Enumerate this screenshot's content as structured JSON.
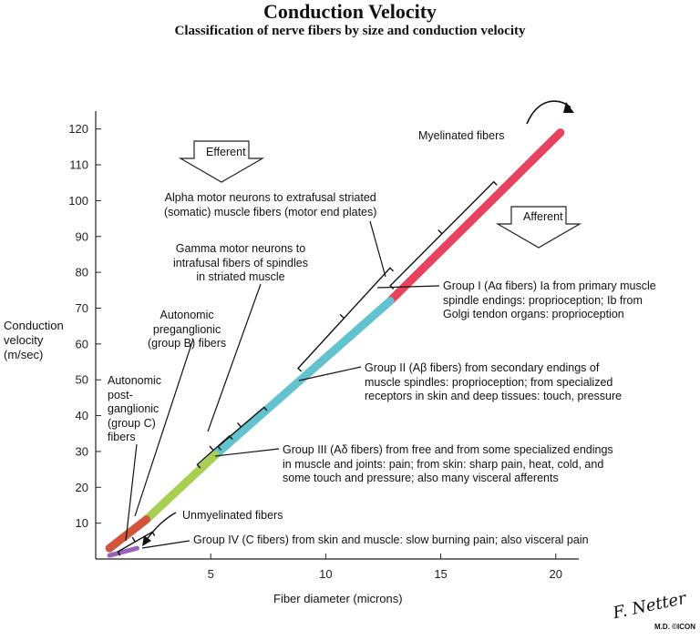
{
  "title": "Conduction Velocity",
  "subtitle": "Classification of nerve fibers by size and conduction velocity",
  "ylabel": "Conduction\nvelocity\n(m/sec)",
  "xlabel": "Fiber diameter (microns)",
  "labels": {
    "efferent": "Efferent",
    "afferent": "Afferent",
    "myelinated": "Myelinated fibers",
    "alpha": "Alpha motor neurons to extrafusal striated\n(somatic) muscle fibers (motor end plates)",
    "gamma": "Gamma motor neurons to\nintrafusal fibers of spindles\nin striated muscle",
    "auto_pre": "Autonomic\npreganglionic\n(group B) fibers",
    "auto_post": "Autonomic\npost-\nganglionic\n(group C)\nfibers",
    "unmyelinated": "Unmyelinated fibers",
    "group1": "Group I (Aα fibers) Ia from primary muscle\nspindle endings: proprioception; Ib from\nGolgi tendon organs: proprioception",
    "group2": "Group II (Aβ fibers) from secondary endings of\nmuscle spindles: proprioception; from specialized\nreceptors in skin and deep tissues: touch, pressure",
    "group3": "Group III (Aδ fibers) from free and from some specialized endings\nin muscle and joints: pain; from skin: sharp pain, heat, cold, and\nsome touch and pressure; also many visceral afferents",
    "group4": "Group IV (C fibers) from skin and muscle: slow burning pain; also visceral pain"
  },
  "signature": "F. Netter",
  "signature_sub": "M.D. ©ICON",
  "colors": {
    "group1": "#e8435e",
    "group2": "#62c3cf",
    "group3": "#a8cf52",
    "preganglionic": "#d1553a",
    "unmyelinated": "#9b5fc0"
  },
  "chart_data": {
    "type": "line",
    "title": "Conduction Velocity",
    "subtitle": "Classification of nerve fibers by size and conduction velocity",
    "xlabel": "Fiber diameter (microns)",
    "ylabel": "Conduction velocity (m/sec)",
    "xlim": [
      0,
      21
    ],
    "ylim": [
      0,
      125
    ],
    "xticks": [
      5,
      10,
      15,
      20
    ],
    "yticks": [
      10,
      20,
      30,
      40,
      50,
      60,
      70,
      80,
      90,
      100,
      110,
      120
    ],
    "grid": false,
    "series": [
      {
        "name": "Group I (Aα fibers)",
        "color": "#e8435e",
        "x": [
          12.8,
          20.2
        ],
        "y": [
          72,
          119
        ]
      },
      {
        "name": "Group II (Aβ fibers)",
        "color": "#62c3cf",
        "x": [
          5.2,
          12.8
        ],
        "y": [
          29,
          72
        ]
      },
      {
        "name": "Group III (Aδ fibers)",
        "color": "#a8cf52",
        "x": [
          2.2,
          5.2
        ],
        "y": [
          11,
          29
        ]
      },
      {
        "name": "Autonomic preganglionic (group B) fibers",
        "color": "#d1553a",
        "x": [
          0.6,
          2.2
        ],
        "y": [
          3,
          11
        ]
      },
      {
        "name": "Unmyelinated fibers",
        "color": "#9b5fc0",
        "x": [
          0.6,
          1.8
        ],
        "y": [
          1,
          3
        ]
      }
    ],
    "brackets": [
      {
        "name": "Alpha motor neurons",
        "x": [
          13.0,
          17.5
        ],
        "y": [
          75,
          104
        ]
      },
      {
        "name": "Gamma motor neurons",
        "x": [
          9.0,
          13.0
        ],
        "y": [
          52,
          80
        ]
      },
      {
        "name": "Autonomic preganglionic",
        "x": [
          5.5,
          7.5
        ],
        "y": [
          30,
          41
        ]
      },
      {
        "name": "Group III",
        "x": [
          4.6,
          6.0
        ],
        "y": [
          25,
          33
        ]
      },
      {
        "name": "Group IV",
        "x": [
          1.1,
          2.6
        ],
        "y": [
          0.5,
          6
        ]
      }
    ]
  }
}
